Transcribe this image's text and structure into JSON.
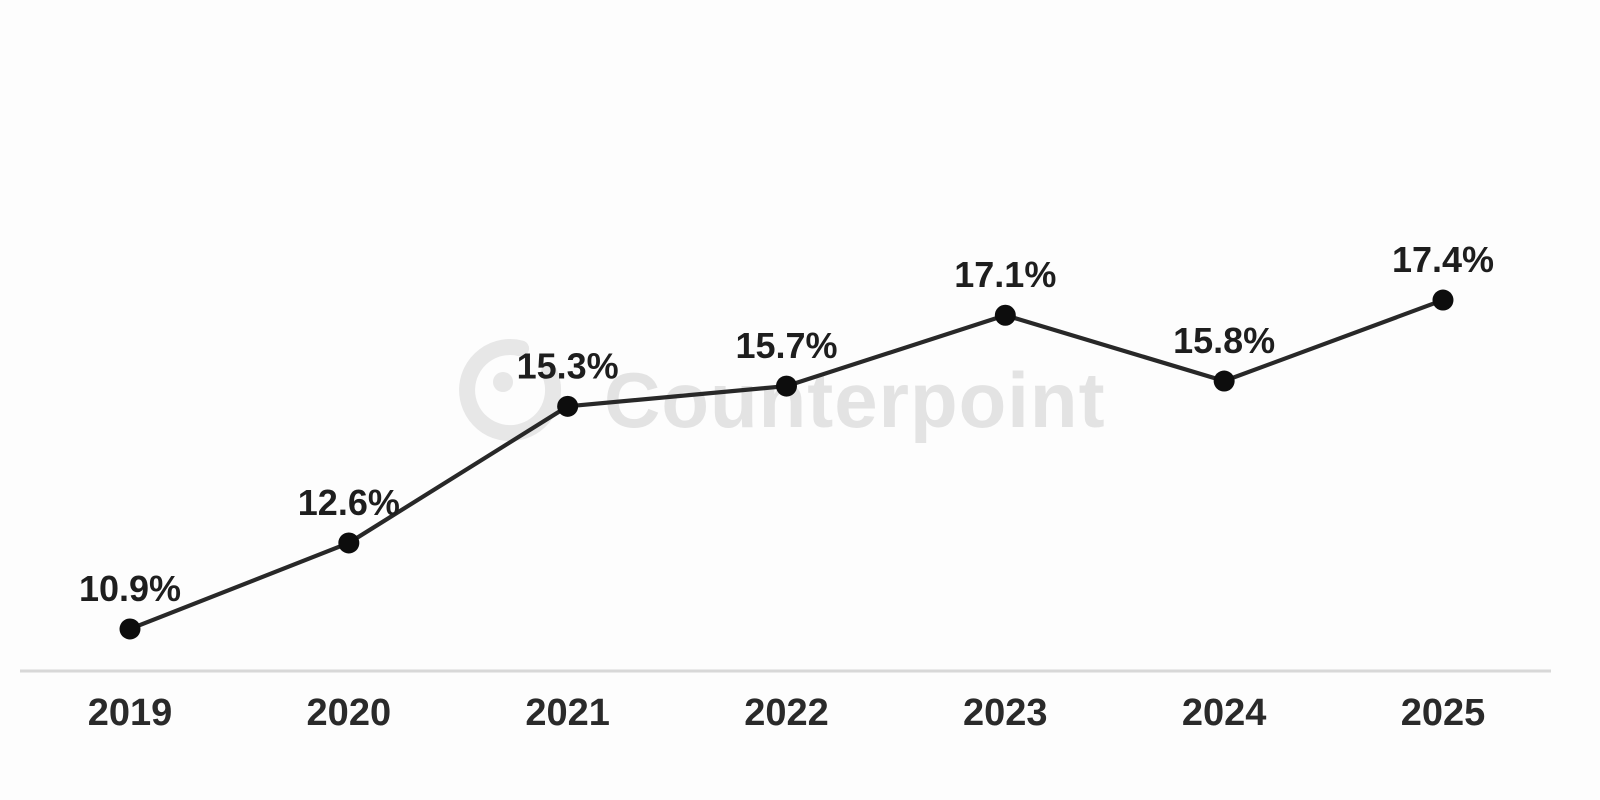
{
  "chart_data": {
    "type": "line",
    "title": "",
    "xlabel": "",
    "ylabel": "",
    "categories": [
      "2019",
      "2020",
      "2021",
      "2022",
      "2023",
      "2024",
      "2025"
    ],
    "series": [
      {
        "name": "share-percent",
        "values": [
          10.9,
          12.6,
          15.3,
          15.7,
          17.1,
          15.8,
          17.4
        ]
      }
    ],
    "point_labels": [
      "10.9%",
      "12.6%",
      "15.3%",
      "15.7%",
      "17.1%",
      "15.8%",
      "17.4%"
    ],
    "ylim": [
      10.1,
      18.6
    ],
    "grid": false,
    "legend": "none",
    "marker": "filled-circle",
    "axis": "x-axis-only"
  },
  "watermark": {
    "text": "Counterpoint",
    "logo": "counterpoint-ring-dot-logo"
  },
  "colors": {
    "background": "#fdfdfd",
    "line": "#282828",
    "marker": "#0d0d0d",
    "value_label": "#1e1e1e",
    "tick_label": "#2a2a2a",
    "axis_line": "#d8d8d8",
    "watermark_logo": "#e7e7e7",
    "watermark_text": "#e3e3e3"
  }
}
